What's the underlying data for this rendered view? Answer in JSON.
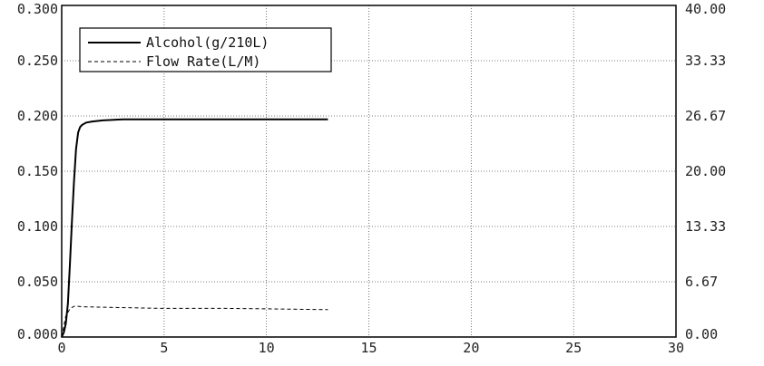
{
  "chart_data": {
    "type": "line",
    "title": "",
    "xlabel": "",
    "ylabel": "",
    "y2label": "",
    "xlim": [
      0,
      30
    ],
    "ylim": [
      0,
      0.3
    ],
    "y2lim": [
      0,
      40
    ],
    "x_ticks": [
      "0",
      "5",
      "10",
      "15",
      "20",
      "25",
      "30"
    ],
    "y_ticks": [
      "0.000",
      "0.050",
      "0.100",
      "0.150",
      "0.200",
      "0.250",
      "0.300"
    ],
    "y2_ticks": [
      "0.00",
      "6.67",
      "13.33",
      "20.00",
      "26.67",
      "33.33",
      "40.00"
    ],
    "grid": true,
    "legend_position": "top-left",
    "series": [
      {
        "name": "Alcohol(g/210L)",
        "axis": "left",
        "style": "solid",
        "color": "#000000",
        "x": [
          0,
          0.1,
          0.2,
          0.3,
          0.4,
          0.5,
          0.6,
          0.7,
          0.8,
          0.9,
          1.0,
          1.2,
          1.5,
          2.0,
          3.0,
          5.0,
          8.0,
          10.0,
          13.0
        ],
        "y": [
          0,
          0.004,
          0.012,
          0.03,
          0.065,
          0.105,
          0.14,
          0.17,
          0.185,
          0.19,
          0.192,
          0.194,
          0.195,
          0.196,
          0.197,
          0.197,
          0.197,
          0.197,
          0.197
        ]
      },
      {
        "name": "Flow Rate(L/M)",
        "axis": "right",
        "style": "dashed",
        "color": "#000000",
        "x": [
          0,
          0.2,
          0.4,
          0.6,
          0.8,
          1.0,
          2.0,
          4.0,
          5.0,
          8.0,
          10.0,
          13.0
        ],
        "y": [
          0,
          2.5,
          3.4,
          3.7,
          3.7,
          3.65,
          3.6,
          3.5,
          3.45,
          3.45,
          3.4,
          3.3
        ]
      }
    ]
  }
}
